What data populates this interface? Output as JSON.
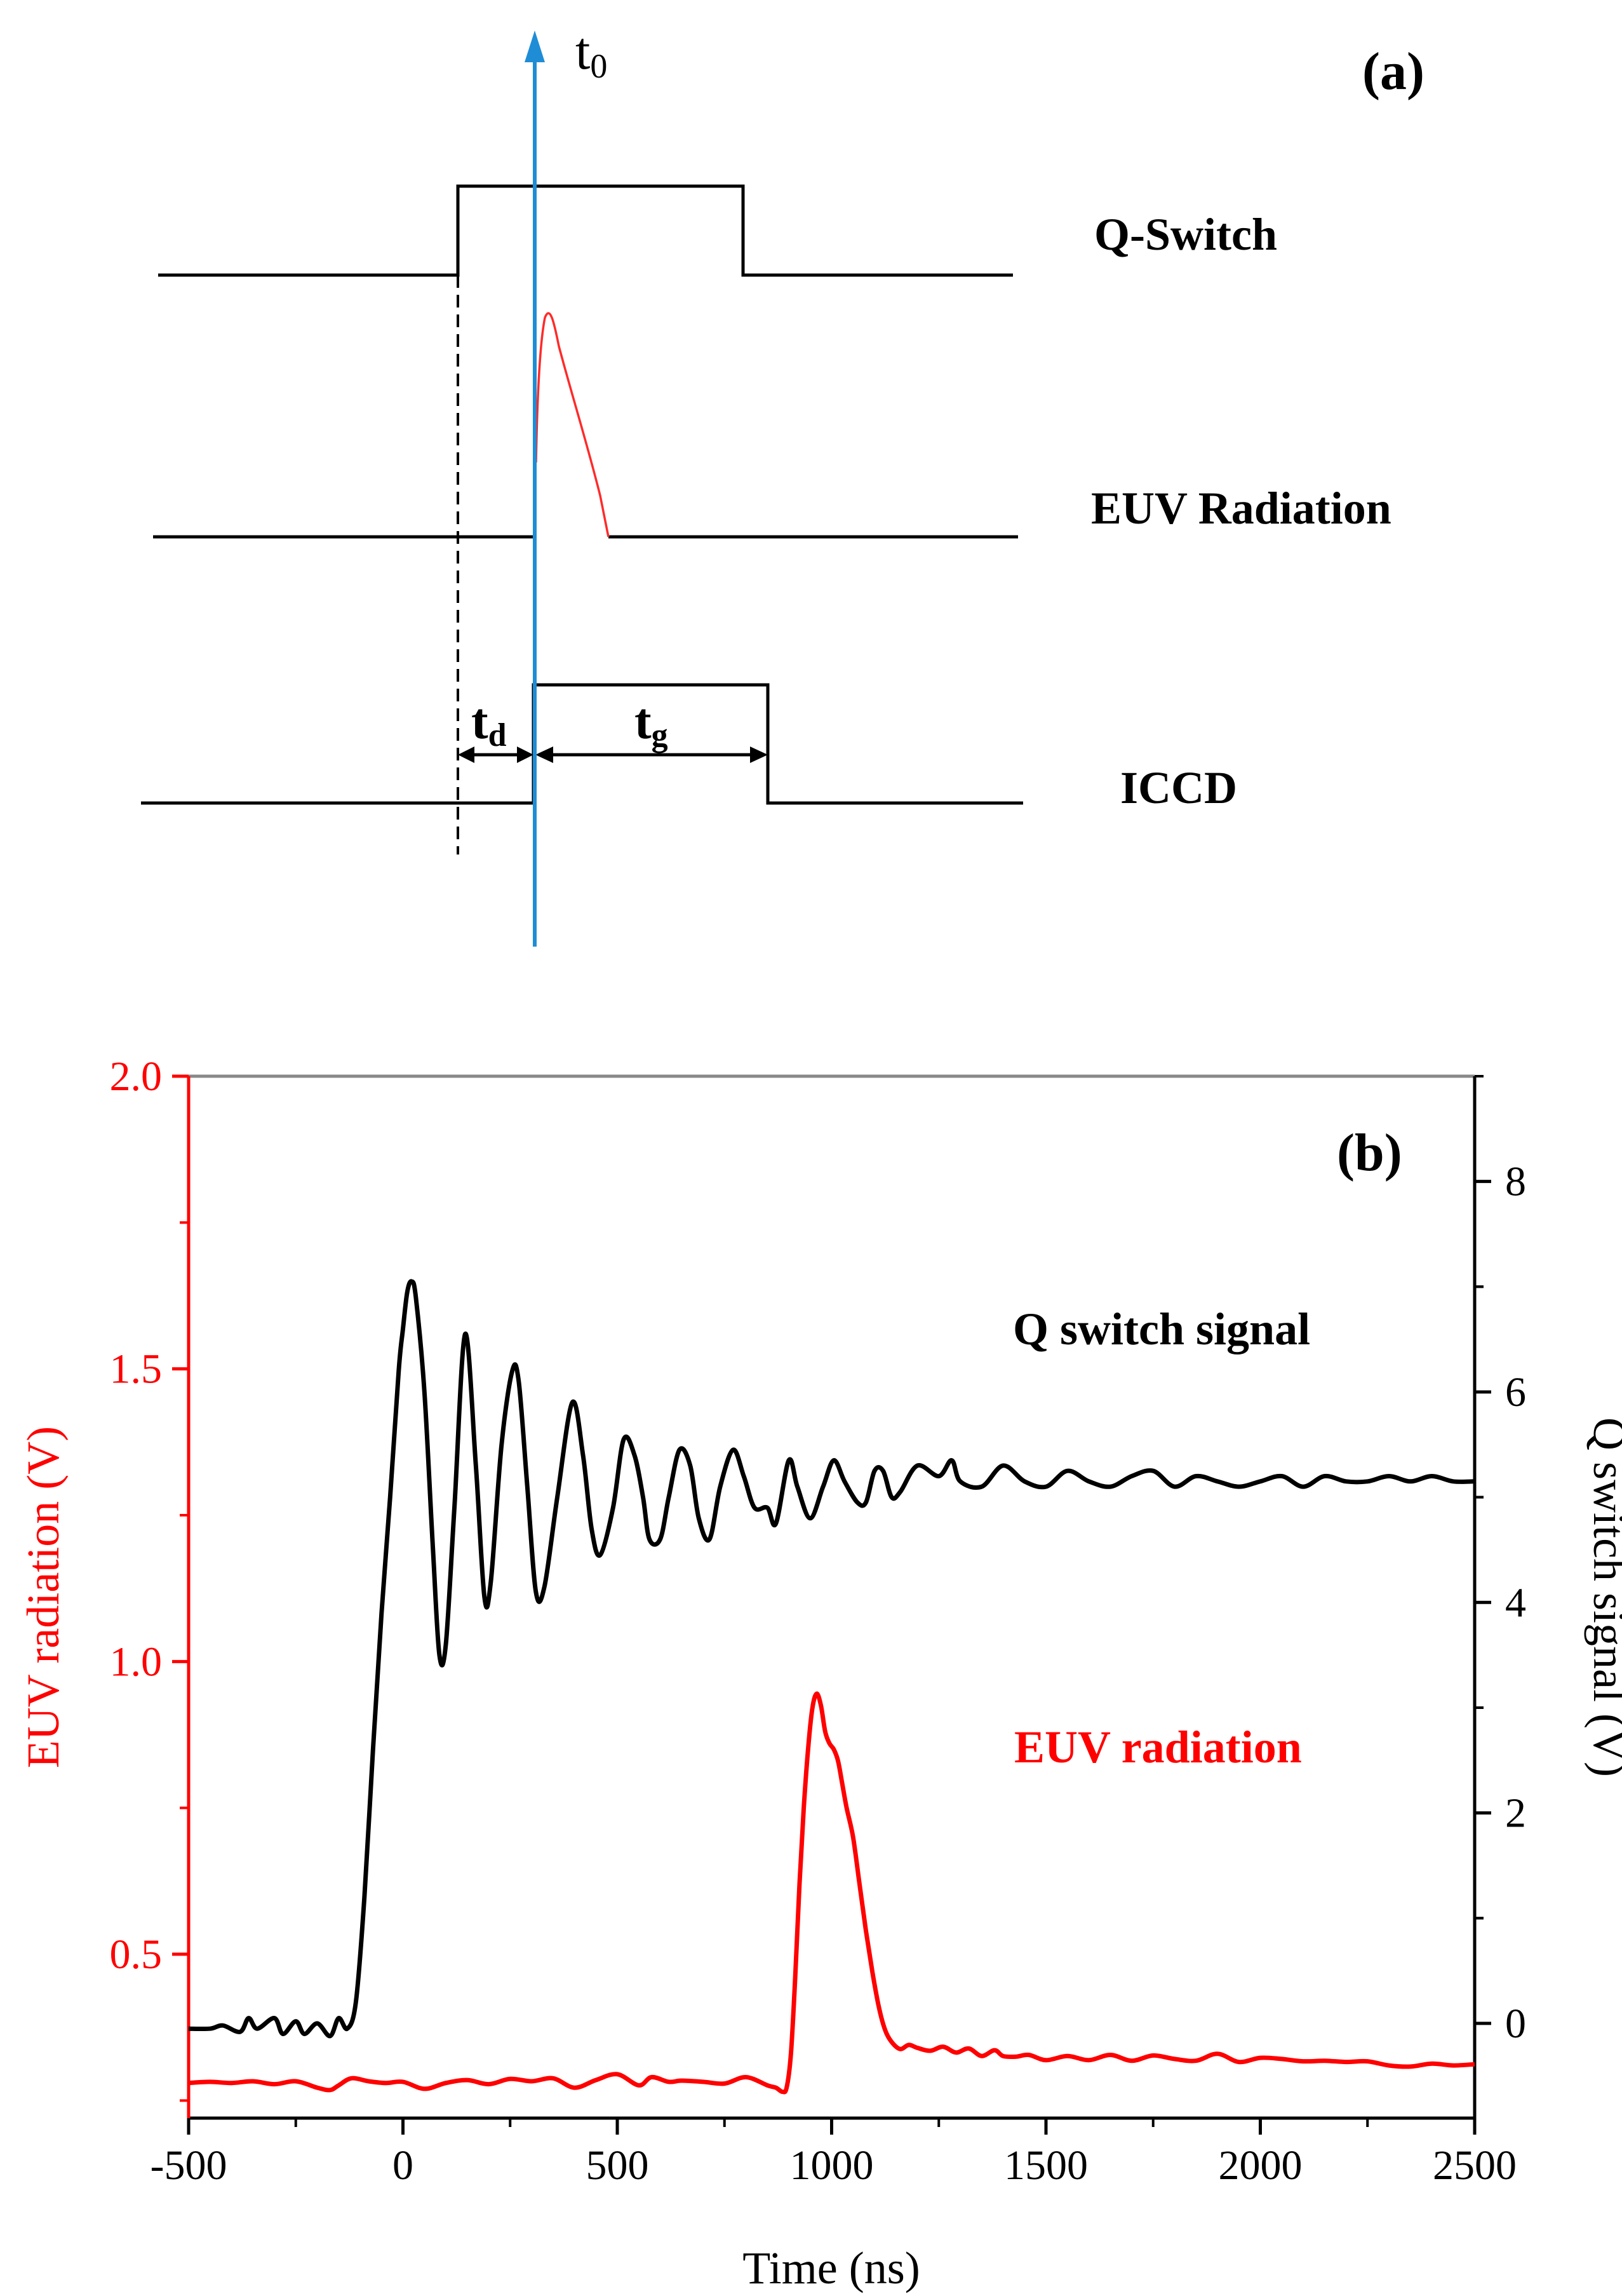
{
  "panel_a": {
    "tag": "(a)",
    "t0_label": {
      "base": "t",
      "sub": "0"
    },
    "td_label": {
      "base": "t",
      "sub": "d"
    },
    "tg_label": {
      "base": "t",
      "sub": "g"
    },
    "signals": [
      {
        "name": "Q-Switch"
      },
      {
        "name": "EUV Radiation"
      },
      {
        "name": "ICCD"
      }
    ],
    "colors": {
      "t0_axis": "#1f8dd6",
      "euv_pulse": "#ff2a2a",
      "lines": "#000000"
    }
  },
  "panel_b": {
    "tag": "(b)",
    "annotations": {
      "q_switch": "Q switch signal",
      "euv": "EUV radiation"
    },
    "colors": {
      "euv": "#ff0000",
      "q_switch": "#000000",
      "frame_top": "#888888"
    }
  },
  "chart_data": {
    "type": "line",
    "title": "(b)",
    "xlabel": "Time (ns)",
    "ylabel_left": "EUV radiation (V)",
    "ylabel_right": "Q switch signal (V)",
    "xlim": [
      -500,
      2500
    ],
    "ylim_left": [
      0.22,
      2.0
    ],
    "ylim_right": [
      -0.9,
      9.0
    ],
    "x_ticks": [
      -500,
      0,
      500,
      1000,
      1500,
      2000,
      2500
    ],
    "y_ticks_left": [
      "0.5",
      "1.0",
      "1.5",
      "2.0"
    ],
    "y_ticks_right": [
      "0",
      "2",
      "4",
      "6",
      "8"
    ],
    "series": [
      {
        "name": "Q switch signal",
        "axis": "right",
        "color": "#000000",
        "x": [
          -500,
          -450,
          -420,
          -380,
          -360,
          -340,
          -300,
          -280,
          -250,
          -230,
          -200,
          -170,
          -150,
          -130,
          -110,
          -90,
          -70,
          -50,
          -30,
          -10,
          0,
          10,
          20,
          30,
          50,
          70,
          85,
          100,
          120,
          145,
          170,
          190,
          205,
          230,
          255,
          270,
          290,
          310,
          330,
          360,
          395,
          420,
          440,
          460,
          490,
          515,
          540,
          560,
          575,
          600,
          620,
          645,
          670,
          690,
          715,
          740,
          770,
          795,
          820,
          850,
          870,
          900,
          920,
          950,
          980,
          1005,
          1030,
          1060,
          1080,
          1100,
          1120,
          1140,
          1160,
          1200,
          1250,
          1280,
          1300,
          1350,
          1400,
          1450,
          1500,
          1550,
          1600,
          1650,
          1700,
          1750,
          1800,
          1850,
          1900,
          1950,
          2000,
          2050,
          2100,
          2150,
          2200,
          2250,
          2300,
          2350,
          2400,
          2450,
          2500
        ],
        "y": [
          -0.05,
          -0.05,
          -0.02,
          -0.08,
          0.05,
          -0.05,
          0.05,
          -0.1,
          0.02,
          -0.1,
          0.0,
          -0.12,
          0.05,
          -0.05,
          0.2,
          1.2,
          2.6,
          3.9,
          5.0,
          6.2,
          6.6,
          6.95,
          7.05,
          6.9,
          6.0,
          4.5,
          3.5,
          3.6,
          4.9,
          6.55,
          5.3,
          4.05,
          4.2,
          5.5,
          6.2,
          6.1,
          5.1,
          4.1,
          4.15,
          5.0,
          5.9,
          5.4,
          4.7,
          4.45,
          4.9,
          5.55,
          5.4,
          5.0,
          4.6,
          4.6,
          5.0,
          5.45,
          5.3,
          4.8,
          4.6,
          5.1,
          5.45,
          5.2,
          4.9,
          4.9,
          4.75,
          5.35,
          5.1,
          4.8,
          5.1,
          5.35,
          5.15,
          4.95,
          4.95,
          5.25,
          5.25,
          5.0,
          5.05,
          5.3,
          5.2,
          5.35,
          5.15,
          5.1,
          5.3,
          5.15,
          5.1,
          5.25,
          5.15,
          5.1,
          5.2,
          5.25,
          5.1,
          5.2,
          5.15,
          5.1,
          5.15,
          5.2,
          5.1,
          5.2,
          5.15,
          5.15,
          5.2,
          5.15,
          5.2,
          5.15,
          5.15
        ]
      },
      {
        "name": "EUV radiation",
        "axis": "left",
        "color": "#ff0000",
        "x": [
          -500,
          -450,
          -400,
          -350,
          -300,
          -250,
          -200,
          -170,
          -150,
          -120,
          -80,
          -40,
          0,
          50,
          100,
          150,
          200,
          250,
          300,
          350,
          400,
          450,
          500,
          550,
          580,
          620,
          650,
          700,
          750,
          800,
          850,
          870,
          885,
          895,
          905,
          915,
          925,
          935,
          945,
          955,
          965,
          975,
          985,
          995,
          1005,
          1015,
          1025,
          1035,
          1050,
          1065,
          1080,
          1095,
          1110,
          1125,
          1140,
          1160,
          1180,
          1200,
          1230,
          1260,
          1290,
          1320,
          1350,
          1380,
          1400,
          1430,
          1460,
          1500,
          1550,
          1600,
          1650,
          1700,
          1750,
          1800,
          1850,
          1900,
          1950,
          2000,
          2050,
          2100,
          2150,
          2200,
          2250,
          2300,
          2350,
          2400,
          2450,
          2500
        ],
        "y": [
          0.28,
          0.282,
          0.28,
          0.283,
          0.278,
          0.283,
          0.272,
          0.268,
          0.276,
          0.288,
          0.283,
          0.28,
          0.282,
          0.27,
          0.28,
          0.285,
          0.278,
          0.287,
          0.283,
          0.288,
          0.272,
          0.285,
          0.295,
          0.276,
          0.29,
          0.282,
          0.284,
          0.282,
          0.279,
          0.29,
          0.276,
          0.272,
          0.265,
          0.272,
          0.33,
          0.46,
          0.62,
          0.75,
          0.85,
          0.92,
          0.945,
          0.925,
          0.88,
          0.86,
          0.85,
          0.83,
          0.79,
          0.75,
          0.7,
          0.62,
          0.54,
          0.47,
          0.41,
          0.37,
          0.35,
          0.338,
          0.345,
          0.34,
          0.335,
          0.342,
          0.332,
          0.339,
          0.326,
          0.336,
          0.326,
          0.325,
          0.328,
          0.319,
          0.326,
          0.319,
          0.328,
          0.318,
          0.327,
          0.321,
          0.318,
          0.33,
          0.316,
          0.323,
          0.321,
          0.317,
          0.318,
          0.316,
          0.317,
          0.31,
          0.308,
          0.313,
          0.31,
          0.312
        ]
      }
    ]
  }
}
